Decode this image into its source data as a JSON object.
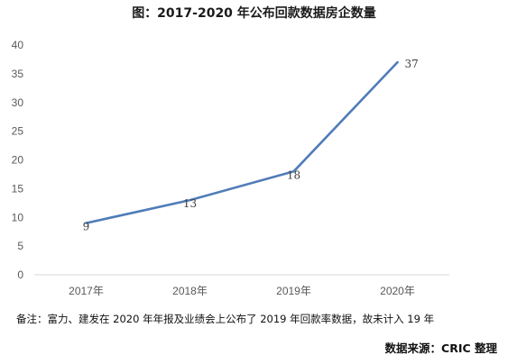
{
  "chart_data": {
    "type": "line",
    "title": "图：2017-2020 年公布回款数据房企数量",
    "categories": [
      "2017年",
      "2018年",
      "2019年",
      "2020年"
    ],
    "series": [
      {
        "values": [
          9,
          13,
          18,
          37
        ]
      }
    ],
    "data_labels": [
      "9",
      "13",
      "18",
      "37"
    ],
    "y_ticks": [
      "0",
      "5",
      "10",
      "15",
      "20",
      "25",
      "30",
      "35",
      "40"
    ],
    "ylim": [
      0,
      40
    ],
    "xlabel": "",
    "ylabel": "",
    "grid": false,
    "legend": "none",
    "line_color": "#4f7cb8"
  },
  "footnote": "备注：富力、建发在 2020 年年报及业绩会上公布了 2019 年回款率数据，故未计入 19 年",
  "source": "数据来源：CRIC 整理"
}
